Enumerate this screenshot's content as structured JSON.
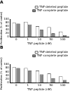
{
  "chart_data": [
    {
      "type": "bar",
      "title": "A",
      "categories": [
        "0",
        "1",
        "10",
        "50",
        "100"
      ],
      "x_label": "TNF peptide (nM)",
      "y_label": "Proliferation (% of control)",
      "series": [
        {
          "name": "TNF-deleted peptide",
          "color": "#ffffff",
          "values": [
            80,
            85,
            60,
            55,
            30
          ]
        },
        {
          "name": "TNF-complete peptide",
          "color": "#888888",
          "values": [
            75,
            70,
            40,
            20,
            10
          ]
        }
      ],
      "ylim": [
        0,
        100
      ],
      "yticks": [
        0,
        20,
        40,
        60,
        80,
        100
      ],
      "legend": "top right",
      "grid": false
    },
    {
      "type": "bar",
      "title": "B",
      "categories": [
        "0",
        "1",
        "10",
        "50",
        "100"
      ],
      "x_label": "TNF peptide (nM)",
      "y_label": "Proliferation (% of control)",
      "series": [
        {
          "name": "TNF-deleted peptide",
          "color": "#ffffff",
          "values": [
            85,
            80,
            65,
            50,
            35
          ]
        },
        {
          "name": "TNF-complete peptide",
          "color": "#888888",
          "values": [
            80,
            65,
            45,
            25,
            15
          ]
        }
      ],
      "ylim": [
        0,
        100
      ],
      "yticks": [
        0,
        20,
        40,
        60,
        80,
        100
      ],
      "legend": "top right",
      "grid": false
    }
  ]
}
